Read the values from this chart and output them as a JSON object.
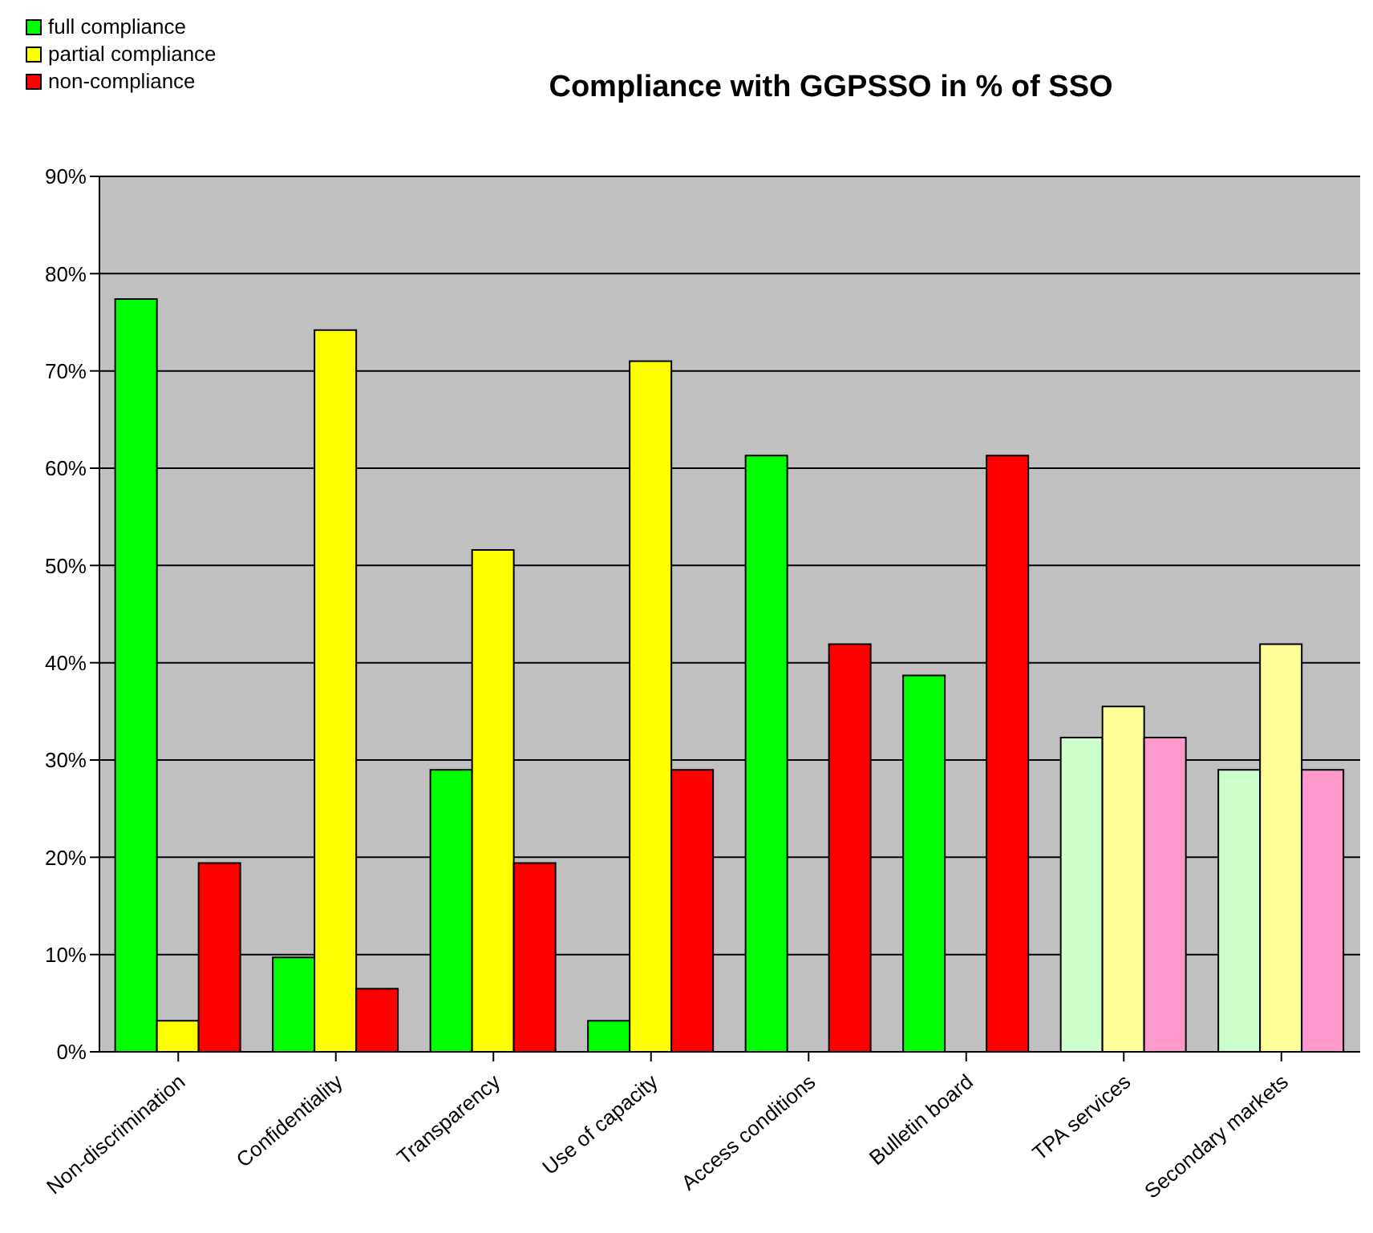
{
  "chart_data": {
    "type": "bar",
    "title": "Compliance with GGPSSO in % of SSO",
    "categories": [
      "Non-discrimination",
      "Confidentiality",
      "Transparency",
      "Use of capacity",
      "Access conditions",
      "Bulletin board",
      "TPA services",
      "Secondary markets"
    ],
    "series": [
      {
        "name": "full compliance",
        "color": "#00ff00",
        "colors": [
          "#00ff00",
          "#00ff00",
          "#00ff00",
          "#00ff00",
          "#00ff00",
          "#00ff00",
          "#ccffcc",
          "#ccffcc"
        ],
        "values": [
          77.4,
          9.7,
          29.0,
          3.2,
          61.3,
          38.7,
          32.3,
          29.0
        ]
      },
      {
        "name": "partial compliance",
        "color": "#ffff00",
        "colors": [
          "#ffff00",
          "#ffff00",
          "#ffff00",
          "#ffff00",
          "#ffff00",
          "#ffff00",
          "#ffff99",
          "#ffff99"
        ],
        "values": [
          3.2,
          74.2,
          51.6,
          71.0,
          0,
          0,
          35.5,
          41.9
        ]
      },
      {
        "name": "non-compliance",
        "color": "#ff0000",
        "colors": [
          "#ff0000",
          "#ff0000",
          "#ff0000",
          "#ff0000",
          "#ff0000",
          "#ff0000",
          "#ff99cc",
          "#ff99cc"
        ],
        "values": [
          19.4,
          6.5,
          19.4,
          29.0,
          41.9,
          61.3,
          32.3,
          29.0
        ]
      }
    ],
    "ylim": [
      0,
      90
    ],
    "yticks": [
      {
        "value": 0,
        "label": "0%"
      },
      {
        "value": 10,
        "label": "10%"
      },
      {
        "value": 20,
        "label": "20%"
      },
      {
        "value": 30,
        "label": "30%"
      },
      {
        "value": 40,
        "label": "40%"
      },
      {
        "value": 50,
        "label": "50%"
      },
      {
        "value": 60,
        "label": "60%"
      },
      {
        "value": 70,
        "label": "70%"
      },
      {
        "value": 80,
        "label": "80%"
      },
      {
        "value": 90,
        "label": "90%"
      }
    ],
    "grid": "y",
    "legend": "top left"
  }
}
